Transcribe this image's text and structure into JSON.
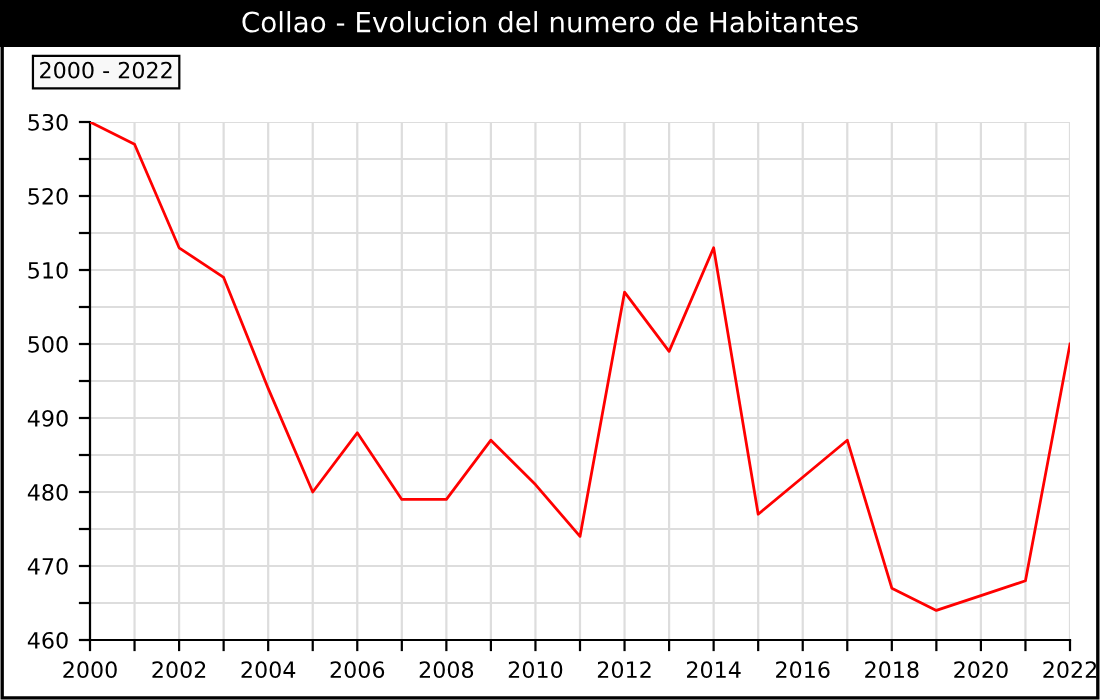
{
  "chart_data": {
    "type": "line",
    "title": "Collao - Evolucion del numero de Habitantes",
    "annotations": [
      "2000 - 2022"
    ],
    "x": [
      2000,
      2001,
      2002,
      2003,
      2004,
      2005,
      2006,
      2007,
      2008,
      2009,
      2010,
      2011,
      2012,
      2013,
      2014,
      2015,
      2016,
      2017,
      2018,
      2019,
      2020,
      2021,
      2022
    ],
    "series": [
      {
        "color": "#ff0000",
        "values": [
          530,
          527,
          513,
          509,
          494,
          480,
          488,
          479,
          479,
          487,
          481,
          474,
          507,
          499,
          513,
          477,
          482,
          487,
          467,
          464,
          466,
          468,
          500
        ]
      }
    ],
    "xlim": [
      2000,
      2022
    ],
    "ylim": [
      460,
      530
    ],
    "xticks": [
      2000,
      {
        "value": 2001,
        "label": null
      },
      2002,
      {
        "value": 2003,
        "label": null
      },
      2004,
      {
        "value": 2005,
        "label": null
      },
      2006,
      {
        "value": 2007,
        "label": null
      },
      2008,
      {
        "value": 2009,
        "label": null
      },
      2010,
      {
        "value": 2011,
        "label": null
      },
      2012,
      {
        "value": 2013,
        "label": null
      },
      2014,
      {
        "value": 2015,
        "label": null
      },
      2016,
      {
        "value": 2017,
        "label": null
      },
      2018,
      {
        "value": 2019,
        "label": null
      },
      2020,
      {
        "value": 2021,
        "label": null
      },
      2022
    ],
    "yticks": [
      460,
      {
        "value": 465,
        "label": null
      },
      470,
      {
        "value": 475,
        "label": null
      },
      480,
      {
        "value": 485,
        "label": null
      },
      490,
      {
        "value": 495,
        "label": null
      },
      500,
      {
        "value": 505,
        "label": null
      },
      510,
      {
        "value": 515,
        "label": null
      },
      520,
      {
        "value": 525,
        "label": null
      },
      530
    ],
    "grid": true,
    "legend": false,
    "marker": "none",
    "line_style": "solid"
  }
}
